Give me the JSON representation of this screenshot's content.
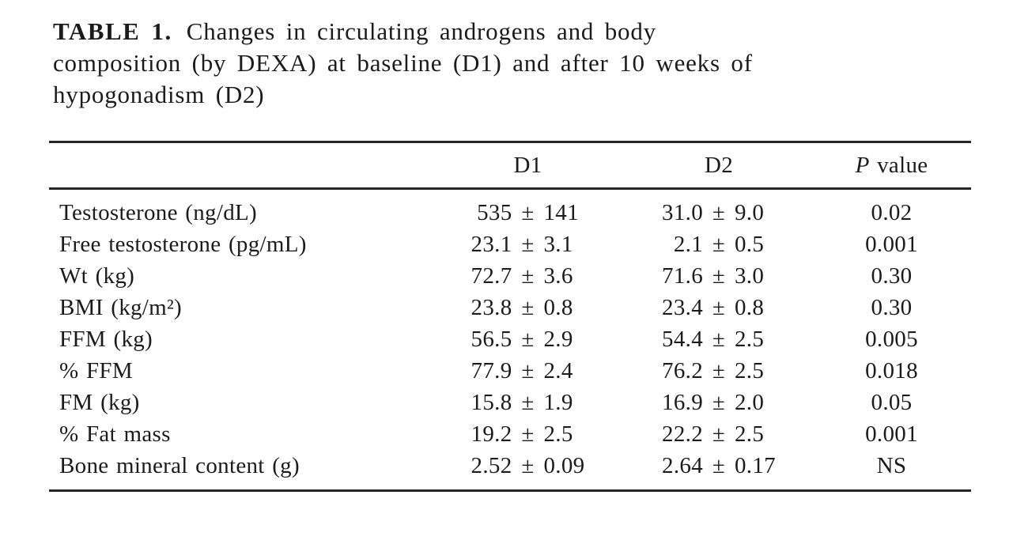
{
  "title": {
    "label": "TABLE 1.",
    "line1": "Changes in circulating androgens and body",
    "line2": "composition (by DEXA) at baseline (D1) and after 10 weeks of",
    "line3": "hypogonadism (D2)"
  },
  "table": {
    "pm": "±",
    "header": {
      "d1": "D1",
      "d2": "D2",
      "p_symbol": "P",
      "p_rest": " value"
    },
    "rows": [
      {
        "label": "Testosterone (ng/dL)",
        "d1_mean": "535",
        "d1_sd": "141",
        "d2_mean": "31.0",
        "d2_sd": "9.0",
        "p": "0.02"
      },
      {
        "label": "Free testosterone (pg/mL)",
        "d1_mean": "23.1",
        "d1_sd": "3.1",
        "d2_mean": "2.1",
        "d2_sd": "0.5",
        "p": "0.001"
      },
      {
        "label": "Wt (kg)",
        "d1_mean": "72.7",
        "d1_sd": "3.6",
        "d2_mean": "71.6",
        "d2_sd": "3.0",
        "p": "0.30"
      },
      {
        "label": "BMI (kg/m²)",
        "d1_mean": "23.8",
        "d1_sd": "0.8",
        "d2_mean": "23.4",
        "d2_sd": "0.8",
        "p": "0.30"
      },
      {
        "label": "FFM (kg)",
        "d1_mean": "56.5",
        "d1_sd": "2.9",
        "d2_mean": "54.4",
        "d2_sd": "2.5",
        "p": "0.005"
      },
      {
        "label": "% FFM",
        "d1_mean": "77.9",
        "d1_sd": "2.4",
        "d2_mean": "76.2",
        "d2_sd": "2.5",
        "p": "0.018"
      },
      {
        "label": "FM (kg)",
        "d1_mean": "15.8",
        "d1_sd": "1.9",
        "d2_mean": "16.9",
        "d2_sd": "2.0",
        "p": "0.05"
      },
      {
        "label": "% Fat mass",
        "d1_mean": "19.2",
        "d1_sd": "2.5",
        "d2_mean": "22.2",
        "d2_sd": "2.5",
        "p": "0.001"
      },
      {
        "label": "Bone mineral content (g)",
        "d1_mean": "2.52",
        "d1_sd": "0.09",
        "d2_mean": "2.64",
        "d2_sd": "0.17",
        "p": "NS"
      }
    ]
  },
  "colors": {
    "text": "#1b1b1b",
    "rule": "#262626",
    "background": "#ffffff"
  }
}
